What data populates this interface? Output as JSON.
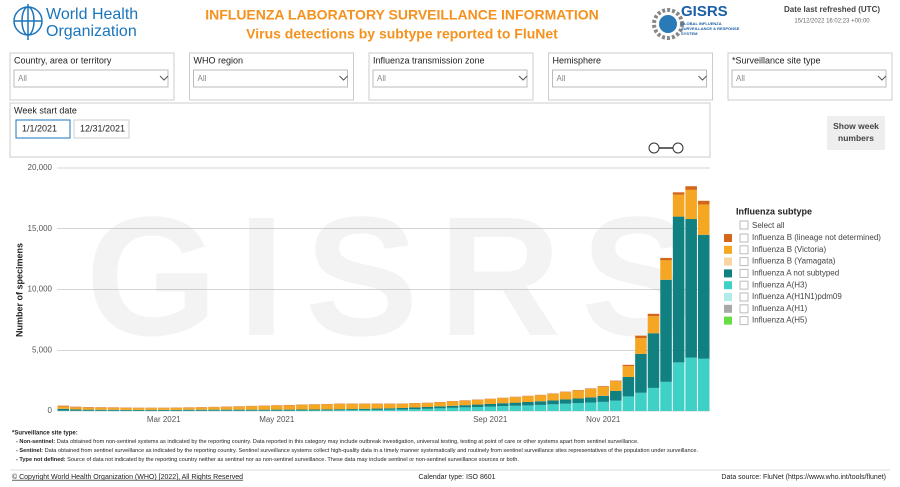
{
  "header": {
    "org_name": "World Health Organization",
    "title": "INFLUENZA LABORATORY SURVEILLANCE INFORMATION",
    "subtitle": "Virus detections by subtype reported to FluNet",
    "gisrs": "GISRS",
    "gisrs_sub": "GLOBAL INFLUENZA SURVEILLANCE & RESPONSE SYSTEM",
    "refreshed_label": "Date last refreshed (UTC)",
    "refreshed_value": "15/12/2022 16:02:23 +00:00"
  },
  "filters": [
    {
      "label": "Country, area or territory",
      "value": "All"
    },
    {
      "label": "WHO region",
      "value": "All"
    },
    {
      "label": "Influenza transmission zone",
      "value": "All"
    },
    {
      "label": "Hemisphere",
      "value": "All"
    },
    {
      "label": "*Surveillance site type",
      "value": "All"
    }
  ],
  "week_filter": {
    "label": "Week start date",
    "start": "1/1/2021",
    "end": "12/31/2021"
  },
  "week_button": "Show week numbers",
  "chart_data": {
    "type": "bar",
    "stacked": true,
    "watermark": "GISRS",
    "y_label": "Number of specimens",
    "legend_title": "Influenza subtype",
    "legend_select_all": "Select all",
    "grid": true,
    "categories": [
      null,
      null,
      null,
      null,
      null,
      null,
      null,
      null,
      "Mar 2021",
      null,
      null,
      null,
      null,
      null,
      null,
      null,
      null,
      "May 2021",
      null,
      null,
      null,
      null,
      null,
      null,
      null,
      null,
      null,
      null,
      null,
      null,
      null,
      null,
      null,
      null,
      "Sep 2021",
      null,
      null,
      null,
      null,
      null,
      null,
      null,
      null,
      "Nov 2021",
      null,
      null,
      null,
      null,
      null,
      null,
      null,
      null
    ],
    "ylim": [
      0,
      20000
    ],
    "yticks": [
      0,
      {
        "value": 5000,
        "label": "5,000"
      },
      {
        "value": 10000,
        "label": "10,000"
      },
      {
        "value": 15000,
        "label": "15,000"
      },
      {
        "value": 20000,
        "label": "20,000"
      }
    ],
    "series": [
      {
        "name": "Influenza B (lineage not determined)",
        "color": "#d4661a",
        "values": [
          60,
          50,
          40,
          40,
          40,
          30,
          30,
          30,
          30,
          30,
          30,
          30,
          30,
          30,
          30,
          30,
          30,
          30,
          30,
          30,
          30,
          30,
          30,
          30,
          30,
          30,
          30,
          30,
          30,
          30,
          30,
          30,
          30,
          30,
          30,
          30,
          30,
          30,
          30,
          30,
          40,
          40,
          40,
          50,
          50,
          100,
          200,
          200,
          200,
          200,
          300,
          300
        ]
      },
      {
        "name": "Influenza B (Victoria)",
        "color": "#f5a623",
        "values": [
          200,
          180,
          170,
          170,
          160,
          160,
          150,
          150,
          150,
          160,
          170,
          180,
          200,
          220,
          250,
          280,
          300,
          330,
          350,
          380,
          400,
          420,
          430,
          420,
          400,
          380,
          360,
          340,
          330,
          320,
          330,
          350,
          370,
          380,
          400,
          420,
          450,
          480,
          500,
          550,
          600,
          650,
          700,
          750,
          800,
          900,
          1300,
          1400,
          1600,
          1800,
          2400,
          2500
        ]
      },
      {
        "name": "Influenza B (Yamagata)",
        "color": "#f8d5a3",
        "values": [
          0,
          0,
          0,
          0,
          0,
          0,
          0,
          0,
          0,
          0,
          0,
          0,
          0,
          0,
          0,
          0,
          0,
          0,
          0,
          0,
          0,
          0,
          0,
          0,
          0,
          0,
          0,
          0,
          0,
          0,
          0,
          0,
          0,
          0,
          0,
          0,
          0,
          0,
          0,
          0,
          0,
          0,
          0,
          0,
          0,
          0,
          0,
          0,
          0,
          0,
          0,
          0
        ]
      },
      {
        "name": "Influenza A not subtyped",
        "color": "#118080",
        "values": [
          150,
          100,
          90,
          80,
          80,
          70,
          70,
          70,
          70,
          70,
          80,
          80,
          80,
          80,
          80,
          80,
          80,
          80,
          80,
          80,
          80,
          80,
          90,
          90,
          100,
          110,
          120,
          130,
          140,
          150,
          160,
          170,
          180,
          200,
          220,
          240,
          260,
          280,
          300,
          320,
          350,
          380,
          420,
          500,
          800,
          1600,
          3200,
          4500,
          8400,
          12000,
          11400,
          10200
        ]
      },
      {
        "name": "Influenza A(H3)",
        "color": "#3fd0c6",
        "values": [
          30,
          25,
          20,
          20,
          20,
          20,
          20,
          20,
          20,
          20,
          25,
          25,
          30,
          30,
          30,
          30,
          30,
          35,
          35,
          40,
          45,
          50,
          60,
          70,
          80,
          90,
          100,
          120,
          150,
          180,
          220,
          260,
          300,
          330,
          360,
          400,
          430,
          460,
          500,
          550,
          600,
          650,
          700,
          750,
          850,
          1200,
          1500,
          1900,
          2400,
          4000,
          4400,
          4300
        ]
      },
      {
        "name": "Influenza A(H1N1)pdm09",
        "color": "#b2ece8",
        "values": [
          0,
          0,
          0,
          0,
          0,
          0,
          0,
          0,
          0,
          0,
          0,
          0,
          0,
          0,
          0,
          0,
          0,
          0,
          0,
          0,
          0,
          0,
          0,
          0,
          0,
          0,
          0,
          0,
          0,
          0,
          0,
          0,
          0,
          0,
          0,
          0,
          0,
          0,
          0,
          0,
          0,
          0,
          0,
          0,
          0,
          0,
          0,
          0,
          0,
          0,
          0,
          0
        ]
      },
      {
        "name": "Influenza A(H1)",
        "color": "#a8a8a8",
        "values": [
          0,
          0,
          0,
          0,
          0,
          0,
          0,
          0,
          0,
          0,
          0,
          0,
          0,
          0,
          0,
          0,
          0,
          0,
          0,
          0,
          0,
          0,
          0,
          0,
          0,
          0,
          0,
          0,
          0,
          0,
          0,
          0,
          0,
          0,
          0,
          0,
          0,
          0,
          0,
          0,
          0,
          0,
          0,
          0,
          0,
          0,
          0,
          0,
          0,
          0,
          0,
          0
        ]
      },
      {
        "name": "Influenza A(H5)",
        "color": "#66dd44",
        "values": [
          0,
          0,
          0,
          0,
          0,
          0,
          0,
          0,
          0,
          0,
          0,
          0,
          0,
          0,
          0,
          0,
          0,
          0,
          0,
          0,
          0,
          0,
          0,
          0,
          0,
          0,
          0,
          0,
          0,
          0,
          0,
          0,
          0,
          0,
          0,
          0,
          0,
          0,
          0,
          0,
          0,
          0,
          0,
          0,
          0,
          0,
          0,
          0,
          0,
          0,
          0,
          0
        ]
      }
    ]
  },
  "notes": {
    "heading": "*Surveillance site type:",
    "items": [
      {
        "term": "- Non-sentinel:",
        "text": " Data obtained from non-sentinel systems as indicated by the reporting country. Data reported in this category may include outbreak investigation, universal testing, testing at point of care or other systems apart from sentinel surveillance."
      },
      {
        "term": "- Sentinel:",
        "text": " Data obtained from sentinel surveillance as indicated by the reporting country. Sentinel surveillance systems collect high-quality data in a timely manner systematically and routinely from sentinel surveillance sites representatives of the population under surveillance."
      },
      {
        "term": "- Type not defined:",
        "text": " Source of data not indicated by the reporting country neither as sentinel nor as non-sentinel surveillance. These data may include sentinel or non-sentinel surveillance sources or both."
      }
    ]
  },
  "footer": {
    "copyright": "© Copyright World Health Organization (WHO) [2022], All Rights Reserved",
    "calendar": "Calendar type: ISO 8601",
    "source": "Data source: FluNet (https://www.who.int/tools/flunet)"
  }
}
